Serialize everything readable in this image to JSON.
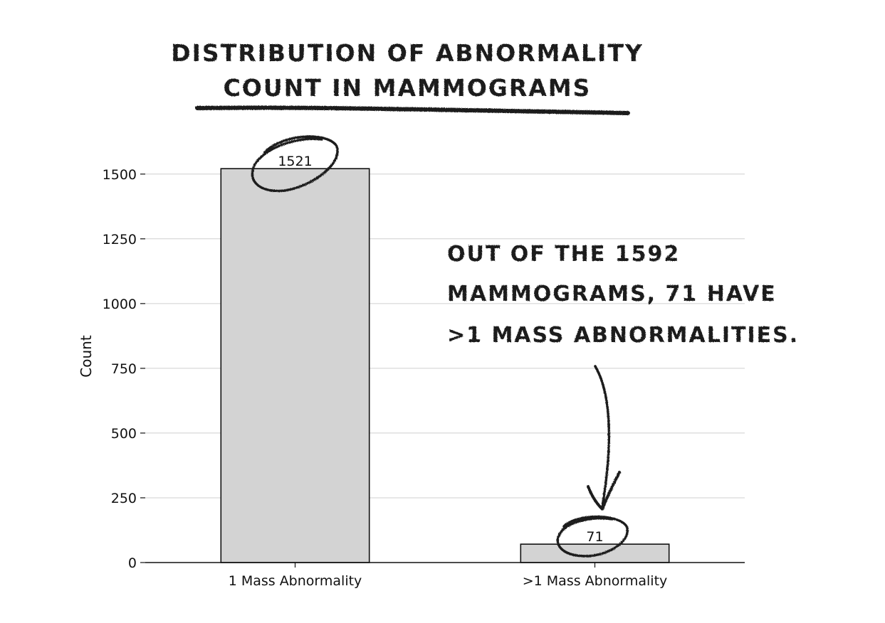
{
  "chart_data": {
    "type": "bar",
    "title": "DISTRIBUTION OF ABNORMALITY COUNT IN MAMMOGRAMS",
    "title_lines": [
      "DISTRIBUTION OF ABNORMALITY",
      "COUNT IN MAMMOGRAMS"
    ],
    "categories": [
      "1 Mass Abnormality",
      ">1 Mass Abnormality"
    ],
    "values": [
      1521,
      71
    ],
    "data_labels": [
      "1521",
      "71"
    ],
    "xlabel": "",
    "ylabel": "Count",
    "ylim": [
      0,
      1590
    ],
    "yticks": [
      0,
      250,
      500,
      750,
      1000,
      1250,
      1500
    ],
    "ytick_labels": [
      "0",
      "250",
      "500",
      "750",
      "1000",
      "1250",
      "1500"
    ],
    "grid": "horizontal",
    "bar_color": "#d3d3d3",
    "annotation": {
      "text_lines": [
        "OUT OF THE 1592",
        "MAMMOGRAMS, 71 HAVE",
        ">1 MASS ABNORMALITIES."
      ],
      "points_to": ">1 Mass Abnormality"
    },
    "highlighted_labels": [
      "1521",
      "71"
    ]
  }
}
